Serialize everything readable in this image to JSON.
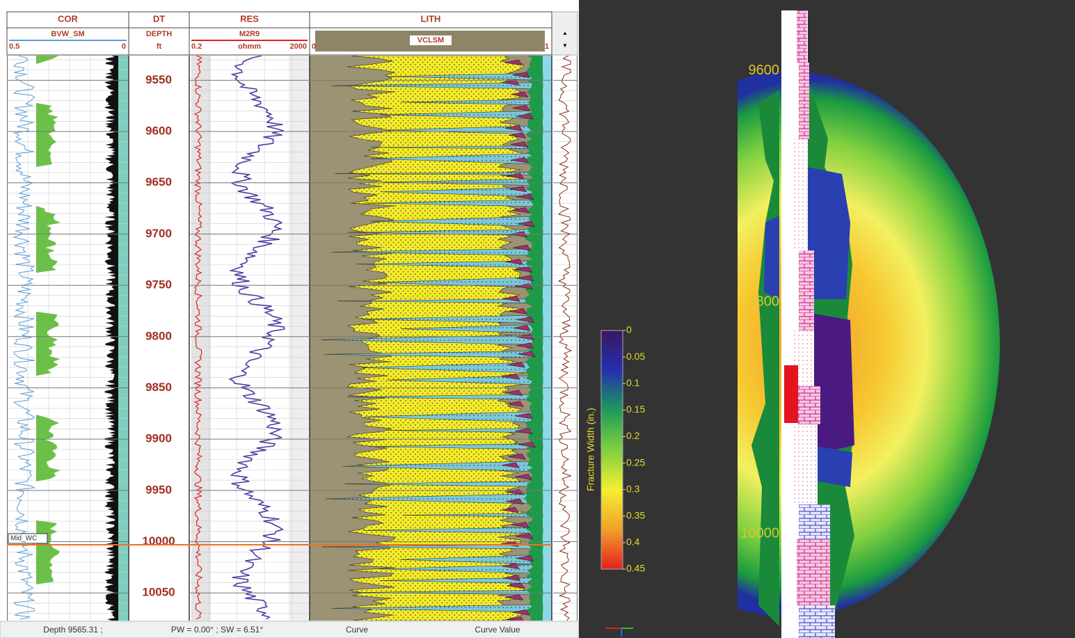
{
  "tracks": [
    {
      "name": "COR",
      "curve": "BVW_SM",
      "scale_left": 0.5,
      "scale_right": 0
    },
    {
      "name": "DT",
      "curve": "DEPTH",
      "unit": "ft"
    },
    {
      "name": "RES",
      "curve": "M2R9",
      "scale_left": 0.2,
      "unit": "ohmm",
      "scale_right": 2000
    },
    {
      "name": "LITH",
      "curve": "VCLSM",
      "scale_left": 0,
      "scale_right": 1
    }
  ],
  "depth_track": {
    "depth_lim": [
      9526,
      10077
    ],
    "depth_ticks": [
      9550,
      9600,
      9650,
      9700,
      9750,
      9800,
      9850,
      9900,
      9950,
      10000,
      10050
    ]
  },
  "markers": [
    {
      "label": "Mid_WC",
      "depth": 10003
    }
  ],
  "status_bar": [
    "Depth 9565.31 ;",
    "PW = 0.00° ; SW = 6.51°",
    "Curve",
    "Curve Value"
  ],
  "view_3d": {
    "depth_lim": [
      9539,
      10090
    ],
    "depth_labels": [
      9600,
      9800,
      10000
    ],
    "colorbar": {
      "title": "Fracture Width (in.)",
      "lim": [
        0,
        0.45
      ],
      "ticks": [
        0,
        0.05,
        0.1,
        0.15,
        0.2,
        0.25,
        0.3,
        0.35,
        0.4,
        0.45
      ],
      "colors": [
        "#3a1660",
        "#2430b0",
        "#1f9a5a",
        "#7fd040",
        "#f2f030",
        "#f3a028",
        "#e42020"
      ]
    }
  }
}
